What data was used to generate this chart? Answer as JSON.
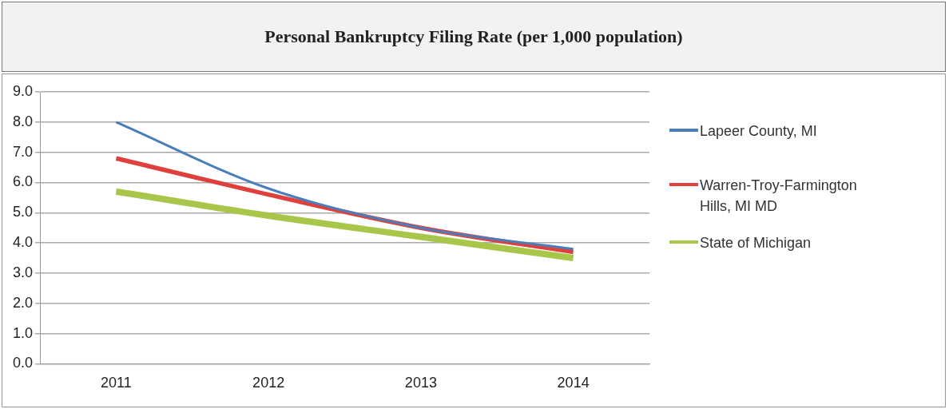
{
  "chart_data": {
    "type": "line",
    "title": "Personal Bankruptcy Filing Rate (per 1,000 population)",
    "categories": [
      "2011",
      "2012",
      "2013",
      "2014"
    ],
    "series": [
      {
        "name": "Lapeer County, MI",
        "color": "#4a7ebb",
        "values": [
          8.0,
          5.8,
          4.5,
          3.8
        ]
      },
      {
        "name": "Warren-Troy-Farmington Hills, MI MD",
        "color": "#e0403c",
        "values": [
          6.8,
          5.6,
          4.5,
          3.7
        ]
      },
      {
        "name": "State of Michigan",
        "color": "#a8c64a",
        "values": [
          5.7,
          4.9,
          4.2,
          3.5
        ]
      }
    ],
    "ylim": [
      0,
      9
    ],
    "yticks": [
      {
        "value": 0,
        "label": "0.0"
      },
      {
        "value": 1,
        "label": "1.0"
      },
      {
        "value": 2,
        "label": "2.0"
      },
      {
        "value": 3,
        "label": "3.0"
      },
      {
        "value": 4,
        "label": "4.0"
      },
      {
        "value": 5,
        "label": "5.0"
      },
      {
        "value": 6,
        "label": "6.0"
      },
      {
        "value": 7,
        "label": "7.0"
      },
      {
        "value": 8,
        "label": "8.0"
      },
      {
        "value": 9,
        "label": "9.0"
      }
    ],
    "grid": "y",
    "legend": "right",
    "marker": "none",
    "line_style": "solid"
  }
}
